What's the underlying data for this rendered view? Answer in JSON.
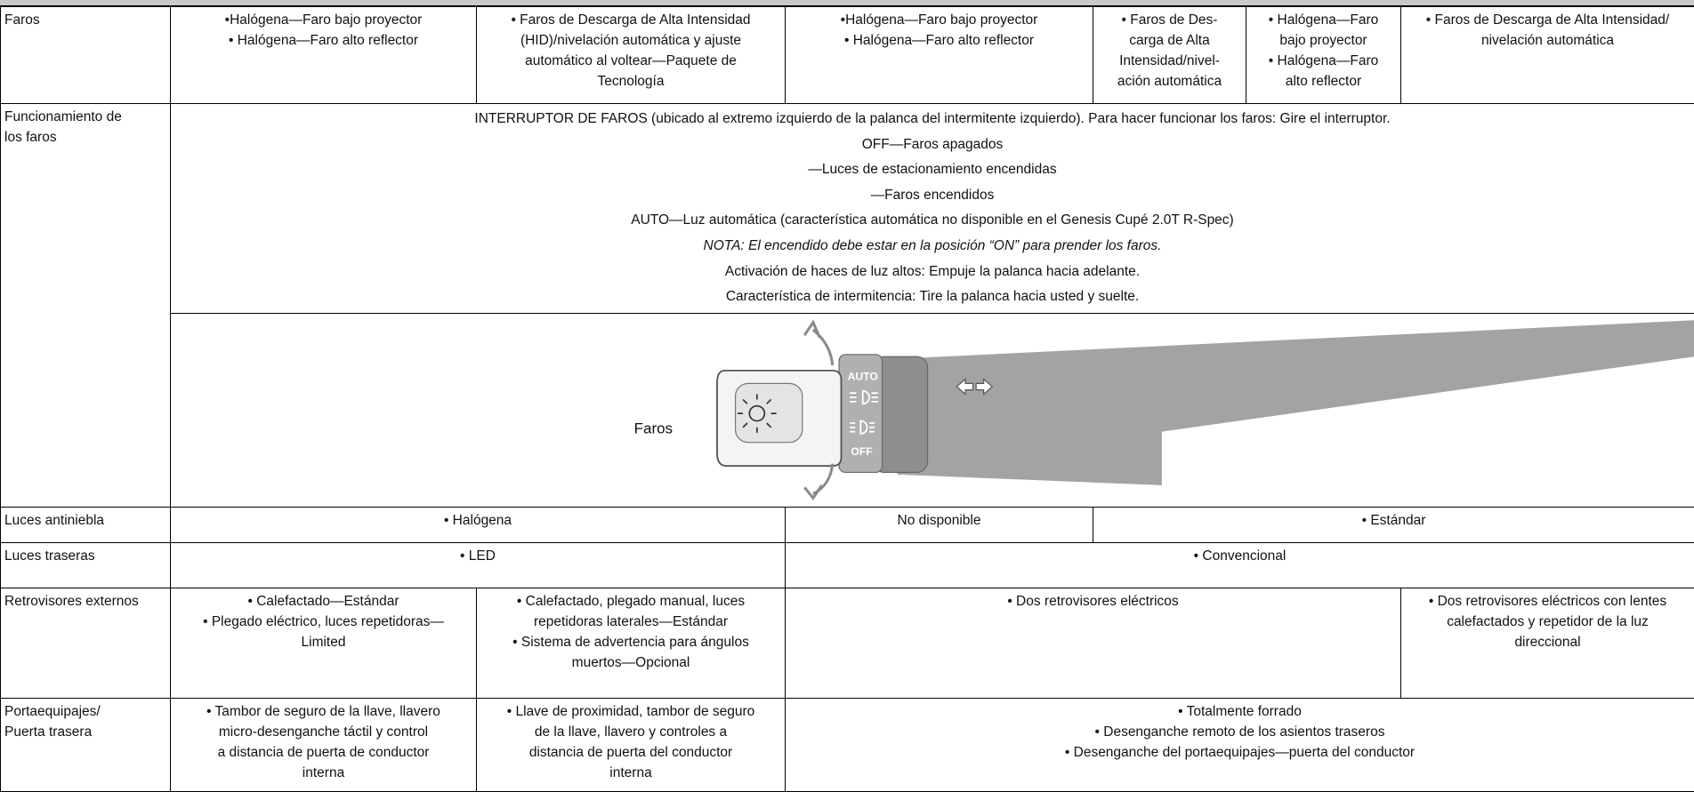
{
  "rows": [
    {
      "label": [
        "Faros"
      ],
      "cells": [
        {
          "lines": [
            "•Halógena—Faro bajo proyector",
            "• Halógena—Faro alto reflector"
          ]
        },
        {
          "lines": [
            "• Faros de Descarga de Alta Intensidad",
            "(HID)/nivelación automática y ajuste",
            "automático al voltear—Paquete de",
            "Tecnología"
          ]
        },
        {
          "lines": [
            "•Halógena—Faro bajo proyector",
            "• Halógena—Faro alto reflector"
          ]
        },
        {
          "lines": [
            "• Faros de Des-",
            "carga de Alta",
            "Intensidad/nivel-",
            "ación automática"
          ]
        },
        {
          "lines": [
            "• Halógena—Faro",
            "bajo proyector",
            "• Halógena—Faro",
            "alto reflector"
          ]
        },
        {
          "lines": [
            "• Faros de Descarga de Alta Intensidad/",
            "nivelación automática"
          ]
        }
      ]
    },
    {
      "label": [
        "Funcionamiento de",
        "los faros"
      ],
      "cells": [
        {
          "lines": [
            "INTERRUPTOR DE FAROS (ubicado al extremo izquierdo de la palanca del intermitente izquierdo). Para hacer funcionar los faros: Gire el interruptor.",
            "OFF—Faros apagados",
            "—Luces de estacionamiento encendidas",
            "—Faros encendidos",
            "AUTO—Luz automática (característica automática no disponible en el Genesis Cupé 2.0T R-Spec)",
            "NOTA: El encendido debe estar en la posición “ON” para prender los faros.",
            "Activación de haces de luz altos: Empuje la palanca hacia adelante.",
            "Característica de intermitencia: Tire la palanca hacia usted y suelte."
          ]
        }
      ],
      "figure": {
        "caption": "Faros",
        "labels": [
          "AUTO",
          "OFF"
        ]
      }
    },
    {
      "label": [
        "Luces antiniebla"
      ],
      "cells": [
        {
          "lines": [
            "• Halógena"
          ]
        },
        {
          "lines": [
            "No disponible"
          ]
        },
        {
          "lines": [
            "• Estándar"
          ]
        }
      ]
    },
    {
      "label": [
        "Luces traseras"
      ],
      "cells": [
        {
          "lines": [
            "• LED"
          ]
        },
        {
          "lines": [
            "• Convencional"
          ]
        }
      ]
    },
    {
      "label": [
        "Retrovisores externos"
      ],
      "cells": [
        {
          "lines": [
            "• Calefactado—Estándar",
            "• Plegado eléctrico, luces repetidoras—",
            "Limited"
          ]
        },
        {
          "lines": [
            "• Calefactado, plegado manual, luces",
            "repetidoras laterales—Estándar",
            "• Sistema de advertencia para ángulos",
            "muertos—Opcional"
          ]
        },
        {
          "lines": [
            "• Dos retrovisores eléctricos"
          ]
        },
        {
          "lines": [
            "• Dos retrovisores eléctricos con lentes",
            "calefactados y repetidor de la luz",
            "direccional"
          ]
        }
      ]
    },
    {
      "label": [
        "Portaequipajes/",
        "Puerta trasera"
      ],
      "cells": [
        {
          "lines": [
            "• Tambor de seguro de la llave, llavero",
            "micro-desenganche táctil y control",
            "a distancia de puerta de conductor",
            "interna"
          ]
        },
        {
          "lines": [
            "• Llave de proximidad, tambor de seguro",
            "de la llave, llavero y controles a",
            "distancia de puerta del conductor",
            "interna"
          ]
        },
        {
          "lines": [
            "• Totalmente forrado",
            "• Desenganche remoto de los asientos traseros",
            "• Desenganche del portaequipajes—puerta del conductor"
          ]
        }
      ]
    }
  ]
}
